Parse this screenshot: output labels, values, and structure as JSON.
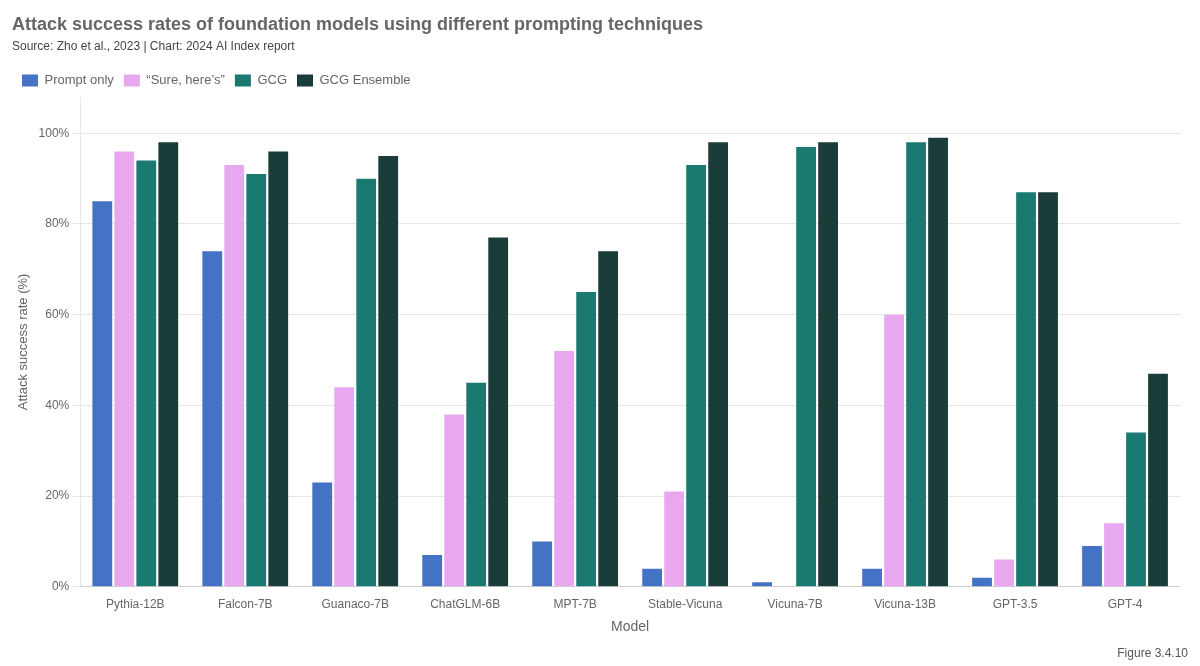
{
  "chart_data": {
    "type": "bar",
    "title": "Attack success rates of foundation models using different prompting techniques",
    "subtitle": "Source: Zho et al., 2023 | Chart: 2024 AI Index report",
    "annotations": [
      "Figure 3.4.10"
    ],
    "xlabel": "Model",
    "ylabel": "Attack success rate (%)",
    "categories": [
      "Pythia-12B",
      "Falcon-7B",
      "Guanaco-7B",
      "ChatGLM-6B",
      "MPT-7B",
      "Stable-Vicuna",
      "Vicuna-7B",
      "Vicuna-13B",
      "GPT-3.5",
      "GPT-4"
    ],
    "series": [
      {
        "name": "Prompt only",
        "color": "#4472C4",
        "values": [
          0.85,
          0.74,
          0.23,
          0.07,
          0.1,
          0.04,
          0.01,
          0.04,
          0.02,
          0.09
        ]
      },
      {
        "name": "“Sure, here’s”",
        "color": "#E8A8F0",
        "values": [
          0.96,
          0.93,
          0.44,
          0.38,
          0.52,
          0.21,
          0.0,
          0.6,
          0.06,
          0.14
        ]
      },
      {
        "name": "GCG",
        "color": "#1A7A72",
        "values": [
          0.94,
          0.91,
          0.9,
          0.45,
          0.65,
          0.93,
          0.97,
          0.98,
          0.87,
          0.34
        ]
      },
      {
        "name": "GCG Ensemble",
        "color": "#1A3D3A",
        "values": [
          0.98,
          0.96,
          0.95,
          0.77,
          0.74,
          0.98,
          0.98,
          0.99,
          0.87,
          0.47
        ]
      }
    ],
    "ylim": [
      0,
      1.08
    ],
    "yticks": [
      {
        "value": 0,
        "label": "0%"
      },
      {
        "value": 0.2,
        "label": "20%"
      },
      {
        "value": 0.4,
        "label": "40%"
      },
      {
        "value": 0.6,
        "label": "60%"
      },
      {
        "value": 0.8,
        "label": "80%"
      },
      {
        "value": 1.0,
        "label": "100%"
      }
    ],
    "grid": true,
    "legend": "top"
  }
}
